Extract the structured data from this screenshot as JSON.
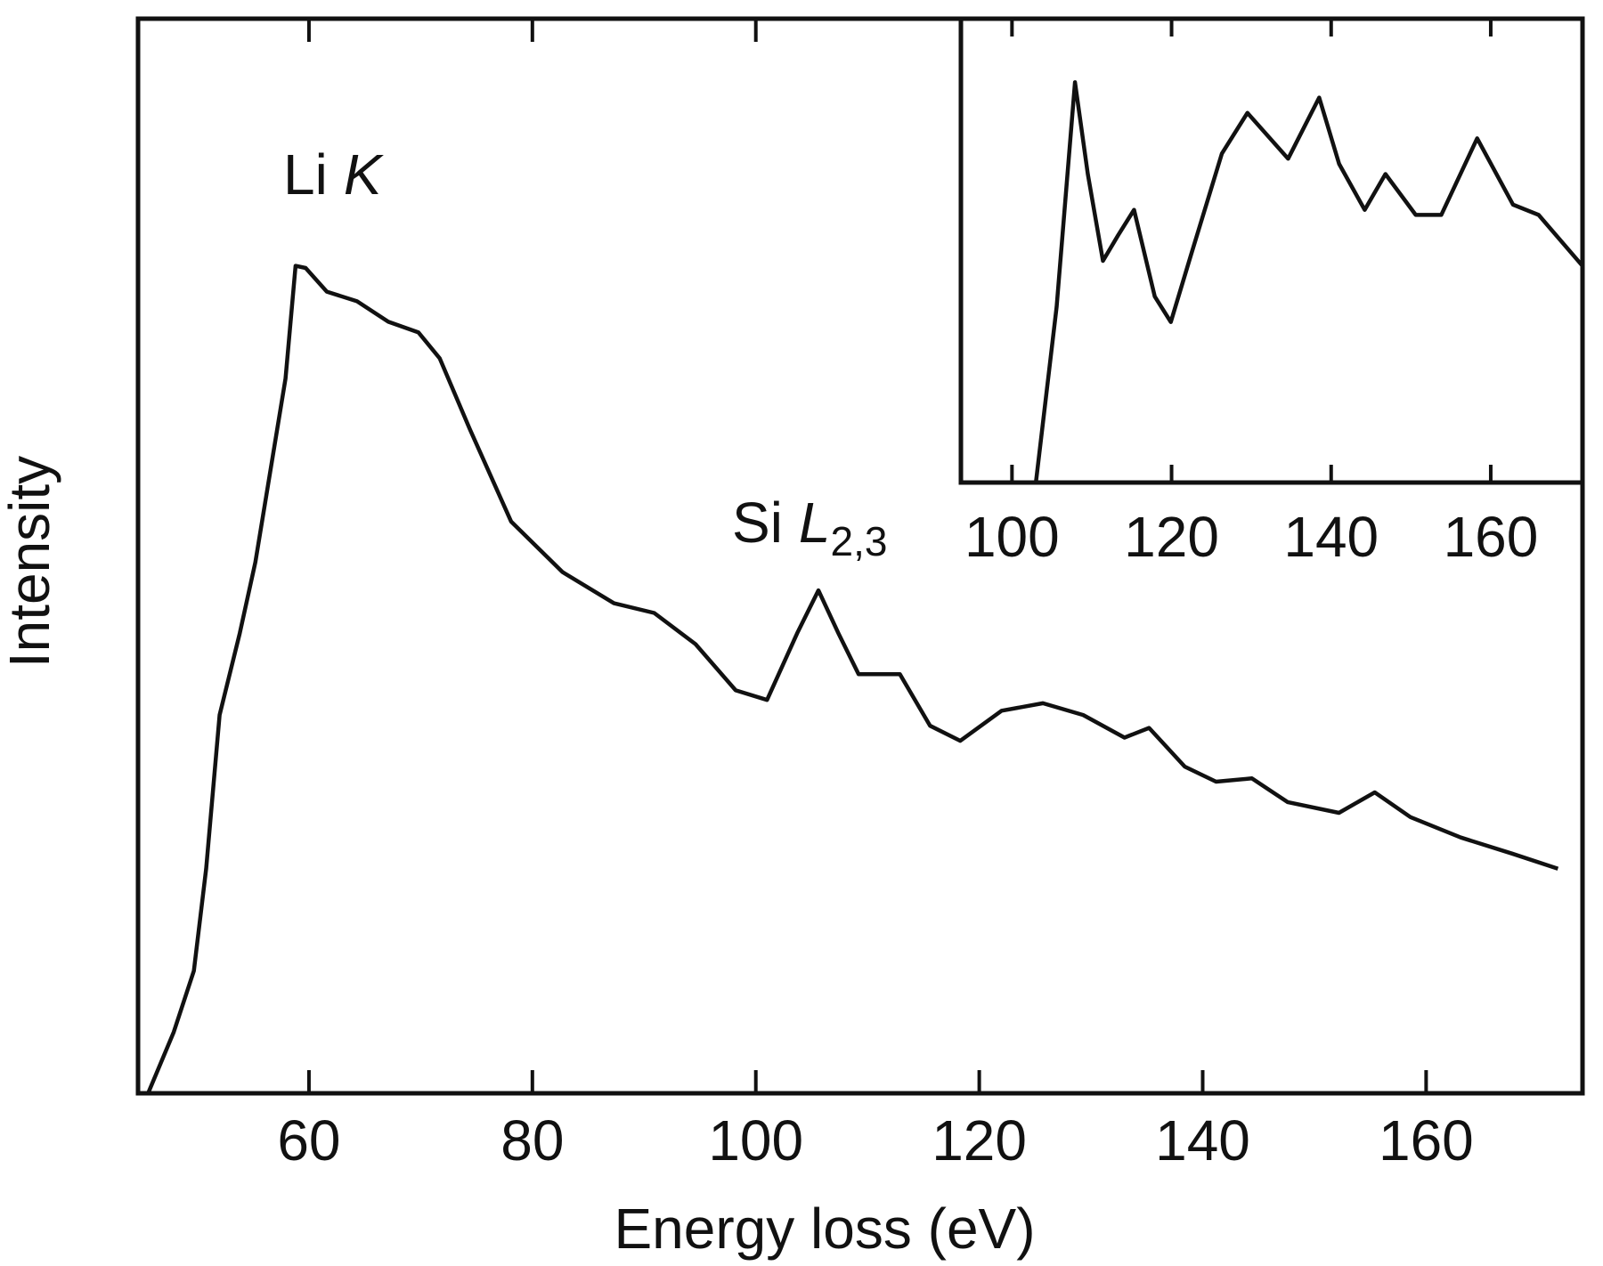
{
  "chart_data": [
    {
      "type": "line",
      "xlabel": "Energy loss (eV)",
      "ylabel": "Intensity",
      "annotations": [
        {
          "label": "Li",
          "symbol": "K"
        },
        {
          "label": "Si",
          "symbol": "L",
          "subscript": "2,3"
        }
      ],
      "x": [
        45.6,
        47.9,
        49.7,
        50.8,
        52,
        53.8,
        55.2,
        57.9,
        58.8,
        59.7,
        61.6,
        64.3,
        67.1,
        69.8,
        71.7,
        74.4,
        78.1,
        82.7,
        87.3,
        90.9,
        94.6,
        98.2,
        101,
        103.7,
        105.6,
        107.4,
        109.2,
        112.9,
        115.6,
        118.3,
        122,
        125.7,
        129.3,
        133,
        135.2,
        138.4,
        141.2,
        144.4,
        147.6,
        152.2,
        155.4,
        158.6,
        163.1,
        167.7,
        171.8
      ],
      "values": [
        0,
        5.7,
        11.4,
        20.9,
        35.2,
        42.8,
        49.4,
        66.5,
        77,
        76.8,
        74.6,
        73.7,
        71.8,
        70.8,
        68.4,
        61.8,
        53.2,
        48.5,
        45.6,
        44.7,
        41.8,
        37.5,
        36.6,
        42.8,
        46.8,
        42.8,
        39,
        39,
        34.2,
        32.8,
        35.6,
        36.3,
        35.2,
        33.1,
        34,
        30.4,
        29,
        29.3,
        27.1,
        26.1,
        28,
        25.7,
        23.8,
        22.3,
        20.9
      ],
      "color": "#111111",
      "xlim": [
        44.7,
        174
      ],
      "xticks": [
        60,
        80,
        100,
        120,
        140,
        160
      ],
      "ylim": [
        0,
        100
      ]
    },
    {
      "type": "line",
      "x": [
        103,
        105.6,
        107.9,
        109.5,
        111.4,
        113.3,
        115.3,
        117.9,
        119.9,
        122.4,
        126.3,
        129.5,
        134.6,
        138.5,
        141,
        144.2,
        146.8,
        150.6,
        153.8,
        158.3,
        162.8,
        166,
        171.5
      ],
      "values": [
        0,
        37.9,
        86.3,
        66.5,
        47.8,
        53.3,
        58.8,
        40.1,
        34.6,
        48.9,
        70.9,
        79.7,
        69.8,
        83,
        68.7,
        58.8,
        66.5,
        57.7,
        57.7,
        74.2,
        59.9,
        57.7,
        46.7
      ],
      "color": "#111111",
      "xlim": [
        93.6,
        171.5
      ],
      "xticks": [
        100,
        120,
        140,
        160
      ],
      "ylim": [
        0,
        100
      ]
    }
  ]
}
